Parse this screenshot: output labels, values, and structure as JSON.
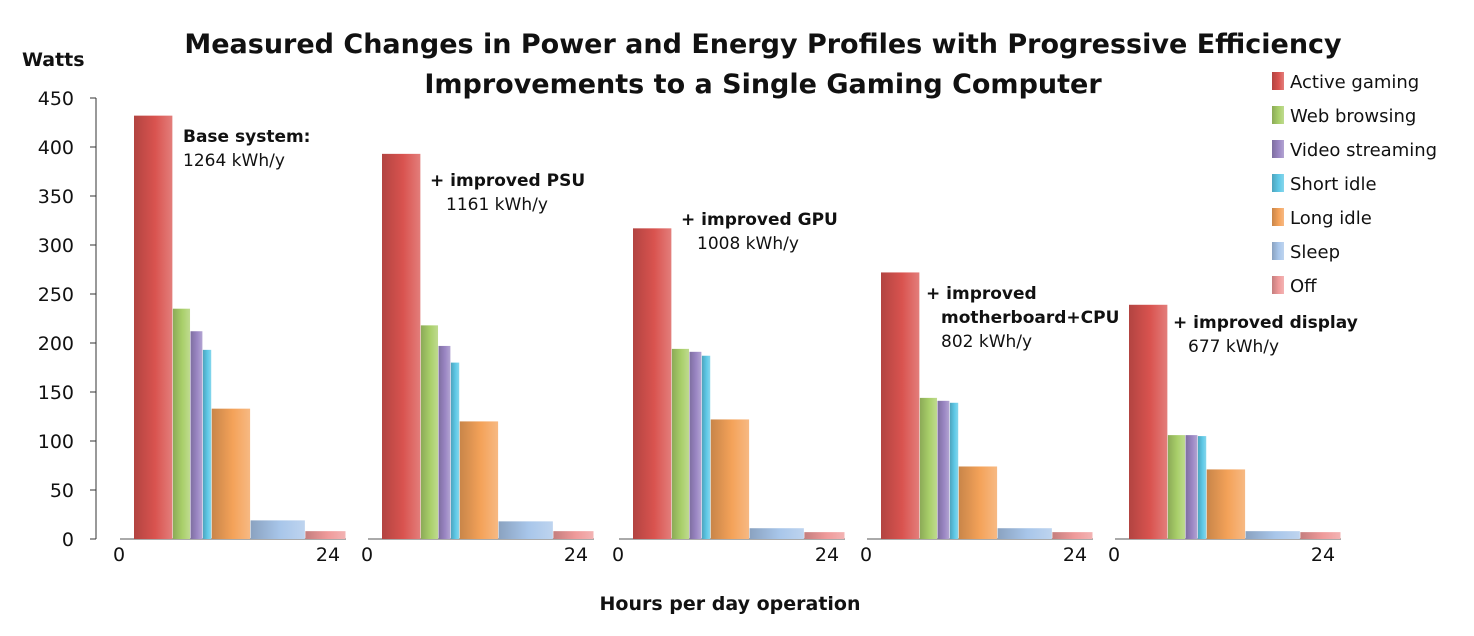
{
  "chart_data": {
    "type": "bar",
    "title_lines": [
      "Measured Changes in Power and Energy Profiles with Progressive Efficiency",
      "Improvements to a Single Gaming Computer"
    ],
    "ylabel": "Watts",
    "xlabel": "Hours per day operation",
    "ylim": [
      0,
      450
    ],
    "yticks": [
      0,
      50,
      100,
      150,
      200,
      250,
      300,
      350,
      400,
      450
    ],
    "xlim": [
      0,
      24
    ],
    "xtick_labels": [
      "0",
      "24"
    ],
    "modes": [
      "Active gaming",
      "Web browsing",
      "Video streaming",
      "Short idle",
      "Long idle",
      "Sleep",
      "Off"
    ],
    "colors": {
      "Active gaming": "#d9534f",
      "Web browsing": "#a9cf6a",
      "Video streaming": "#9a86c3",
      "Short idle": "#5ec8e6",
      "Long idle": "#f4a259",
      "Sleep": "#a8c6ea",
      "Off": "#ef9a9a"
    },
    "hours_per_day": [
      4.4,
      2.0,
      1.4,
      1.0,
      4.4,
      6.2,
      4.6
    ],
    "legend_position": "top-right",
    "grid": false,
    "panels": [
      {
        "annotation": [
          "Base system:",
          "1264 kWh/y"
        ],
        "values": [
          432,
          235,
          212,
          193,
          133,
          19,
          8
        ]
      },
      {
        "annotation": [
          "+ improved PSU",
          "1161 kWh/y"
        ],
        "values": [
          393,
          218,
          197,
          180,
          120,
          18,
          8
        ]
      },
      {
        "annotation": [
          "+ improved GPU",
          "1008 kWh/y"
        ],
        "values": [
          317,
          194,
          191,
          187,
          122,
          11,
          7
        ]
      },
      {
        "annotation": [
          "+ improved",
          "motherboard+CPU",
          "802 kWh/y"
        ],
        "values": [
          272,
          144,
          141,
          139,
          74,
          11,
          7
        ]
      },
      {
        "annotation": [
          "+ improved display",
          "677 kWh/y"
        ],
        "values": [
          239,
          106,
          106,
          105,
          71,
          8,
          7
        ]
      }
    ]
  }
}
